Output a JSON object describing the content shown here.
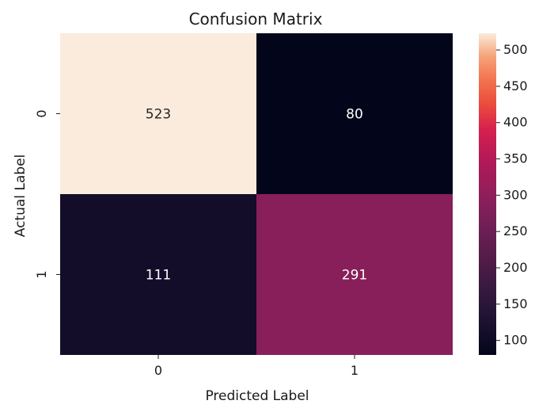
{
  "chart_data": {
    "type": "heatmap",
    "title": "Confusion Matrix",
    "xlabel": "Predicted Label",
    "ylabel": "Actual Label",
    "x_categories": [
      "0",
      "1"
    ],
    "y_categories": [
      "0",
      "1"
    ],
    "values": [
      [
        523,
        80
      ],
      [
        111,
        291
      ]
    ],
    "colorbar": {
      "min": 80,
      "max": 523,
      "ticks": [
        100,
        150,
        200,
        250,
        300,
        350,
        400,
        450,
        500
      ],
      "colormap": "rocket"
    },
    "cell_text_colors": {
      "on_light": "#262626",
      "on_dark": "#ffffff"
    },
    "grid": false
  }
}
